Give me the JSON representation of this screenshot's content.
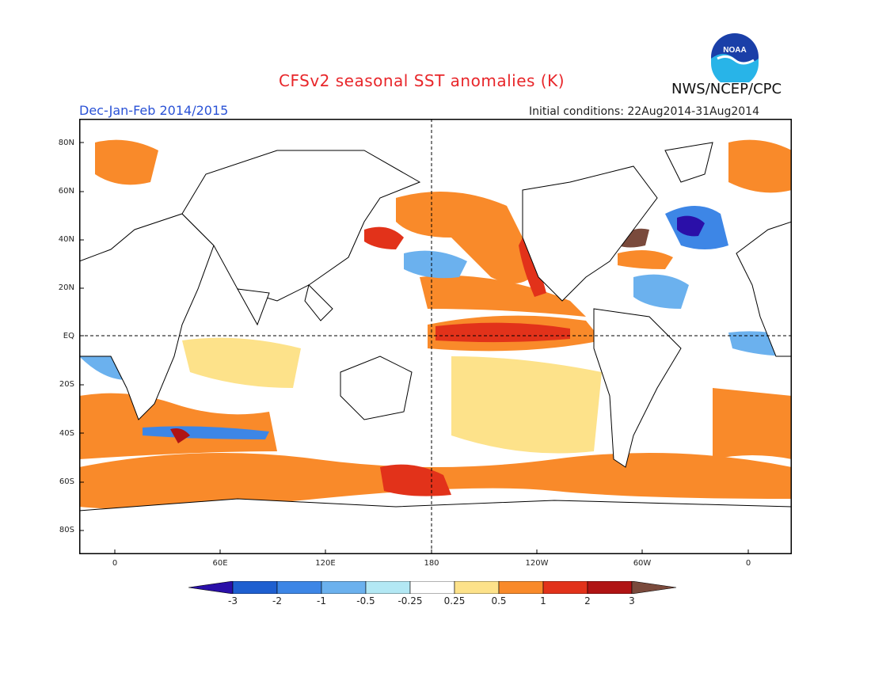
{
  "header": {
    "title": "CFSv2 seasonal SST anomalies (K)",
    "org": "NWS/NCEP/CPC",
    "season": "Dec-Jan-Feb 2014/2015",
    "initial_conditions": "Initial conditions: 22Aug2014-31Aug2014",
    "logo_text": "NOAA"
  },
  "axes": {
    "lat_labels": [
      "80N",
      "60N",
      "40N",
      "20N",
      "EQ",
      "20S",
      "40S",
      "60S",
      "80S"
    ],
    "lon_labels": [
      "0",
      "60E",
      "120E",
      "180",
      "120W",
      "60W",
      "0"
    ]
  },
  "colorbar": {
    "labels": [
      "-3",
      "-2",
      "-1",
      "-0.5",
      "-0.25",
      "0.25",
      "0.5",
      "1",
      "2",
      "3"
    ],
    "colors": [
      "#2a0fa8",
      "#1e5fd0",
      "#3d86e6",
      "#6bb1ee",
      "#b3e8f4",
      "#ffffff",
      "#fde28a",
      "#f98a2a",
      "#e2321a",
      "#b01414",
      "#7a4a3c"
    ]
  },
  "colors": {
    "title": "#e8262a",
    "season": "#2a52d6",
    "warm": "#f98a2a",
    "cold": "#3d86e6"
  }
}
